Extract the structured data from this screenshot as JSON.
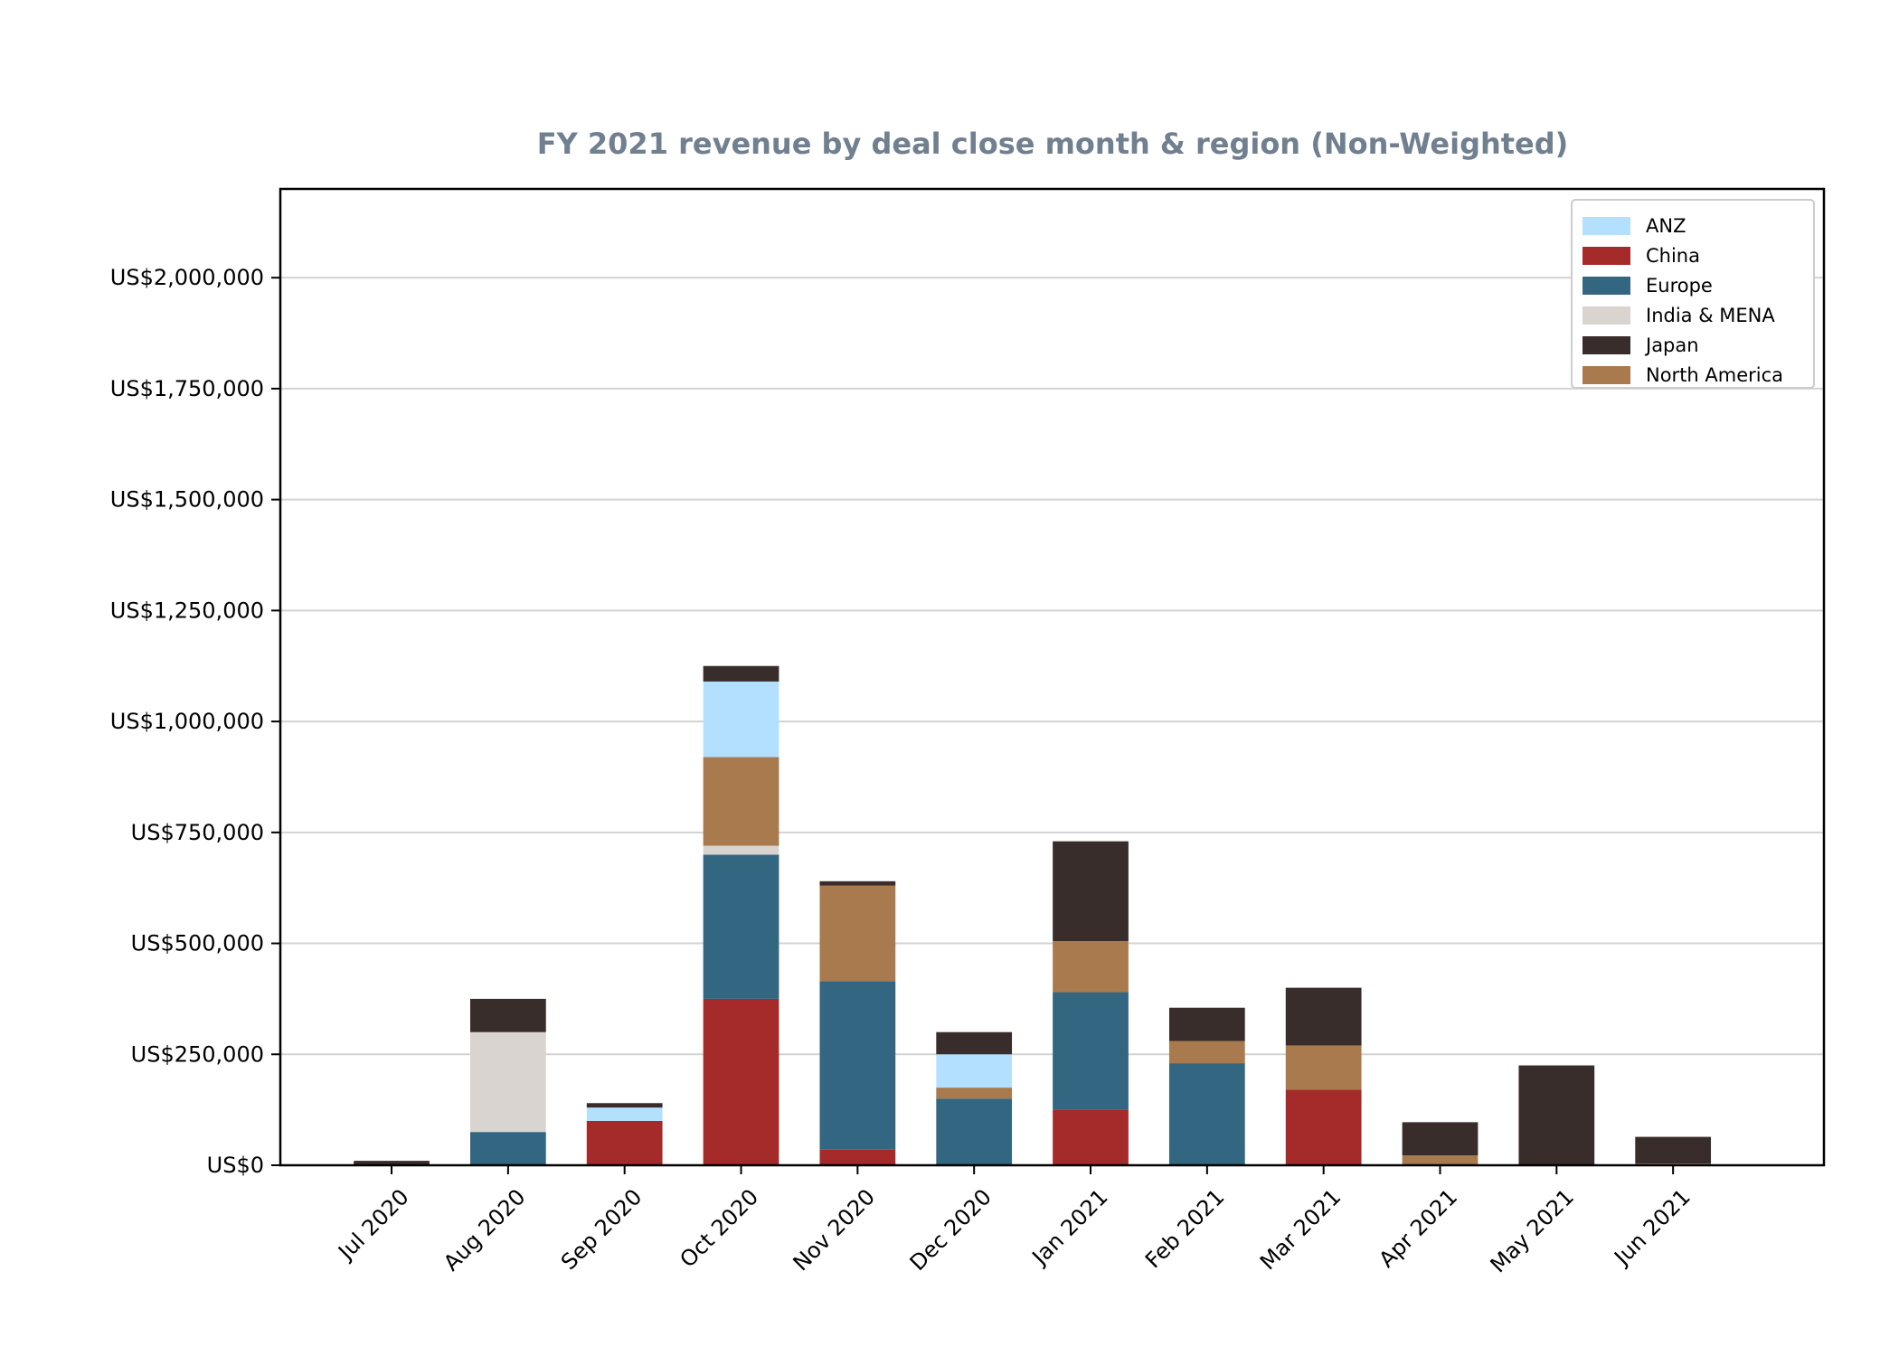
{
  "chart_data": {
    "type": "bar",
    "stacked": true,
    "title": "FY 2021 revenue by deal close month & region (Non-Weighted)",
    "xlabel": "",
    "ylabel": "",
    "categories": [
      "Jul 2020",
      "Aug 2020",
      "Sep 2020",
      "Oct 2020",
      "Nov 2020",
      "Dec 2020",
      "Jan 2021",
      "Feb 2021",
      "Mar 2021",
      "Apr 2021",
      "May 2021",
      "Jun 2021"
    ],
    "stack_order": [
      "China",
      "Europe",
      "India & MENA",
      "North America",
      "ANZ",
      "Japan"
    ],
    "series": [
      {
        "name": "ANZ",
        "color": "#b3e0ff",
        "values": [
          0,
          0,
          30000,
          170000,
          0,
          75000,
          0,
          0,
          0,
          0,
          0,
          0
        ]
      },
      {
        "name": "China",
        "color": "#a52a2a",
        "values": [
          0,
          0,
          100000,
          375000,
          35000,
          0,
          125000,
          0,
          170000,
          0,
          0,
          0
        ]
      },
      {
        "name": "Europe",
        "color": "#336680",
        "values": [
          0,
          75000,
          0,
          325000,
          380000,
          150000,
          265000,
          230000,
          0,
          0,
          0,
          0
        ]
      },
      {
        "name": "India & MENA",
        "color": "#d9d4cf",
        "values": [
          0,
          225000,
          0,
          20000,
          0,
          0,
          0,
          0,
          0,
          0,
          0,
          0
        ]
      },
      {
        "name": "Japan",
        "color": "#382d2b",
        "values": [
          10000,
          75000,
          10000,
          35000,
          10000,
          50000,
          225000,
          75000,
          130000,
          75000,
          225000,
          60000
        ]
      },
      {
        "name": "North America",
        "color": "#a97a4d",
        "values": [
          0,
          0,
          0,
          200000,
          215000,
          25000,
          115000,
          50000,
          100000,
          22000,
          0,
          4000
        ]
      }
    ],
    "ylim": [
      0,
      2200000
    ],
    "yticks": [
      {
        "value": 0,
        "label": "US$0"
      },
      {
        "value": 250000,
        "label": "US$250,000"
      },
      {
        "value": 500000,
        "label": "US$500,000"
      },
      {
        "value": 750000,
        "label": "US$750,000"
      },
      {
        "value": 1000000,
        "label": "US$1,000,000"
      },
      {
        "value": 1250000,
        "label": "US$1,250,000"
      },
      {
        "value": 1500000,
        "label": "US$1,500,000"
      },
      {
        "value": 1750000,
        "label": "US$1,750,000"
      },
      {
        "value": 2000000,
        "label": "US$2,000,000"
      }
    ],
    "grid": "y",
    "legend_position": "top-right"
  }
}
